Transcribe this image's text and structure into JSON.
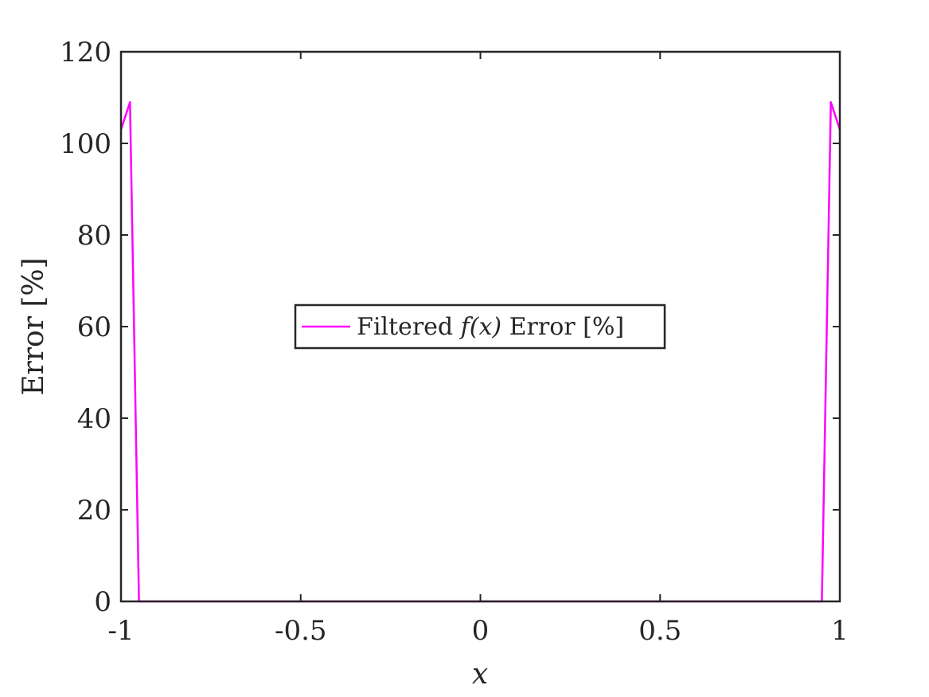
{
  "chart_data": {
    "type": "line",
    "title": "",
    "xlabel": "x",
    "ylabel": "Error [%]",
    "xlim": [
      -1,
      1
    ],
    "ylim": [
      0,
      120
    ],
    "xticks": [
      -1,
      -0.5,
      0,
      0.5,
      1
    ],
    "xtick_labels": [
      "-1",
      "-0.5",
      "0",
      "0.5",
      "1"
    ],
    "yticks": [
      0,
      20,
      40,
      60,
      80,
      100,
      120
    ],
    "ytick_labels": [
      "0",
      "20",
      "40",
      "60",
      "80",
      "100",
      "120"
    ],
    "grid": false,
    "legend_position": "center",
    "series": [
      {
        "name": "Filtered f(x) Error [%]",
        "color": "#ff00ff",
        "x": [
          -1.0,
          -0.975,
          -0.95,
          0.95,
          0.975,
          1.0
        ],
        "y": [
          103,
          109,
          0,
          0,
          109,
          103
        ]
      }
    ]
  },
  "legend": {
    "prefix": "Filtered ",
    "math": "f(x)",
    "suffix": " Error [%]"
  }
}
